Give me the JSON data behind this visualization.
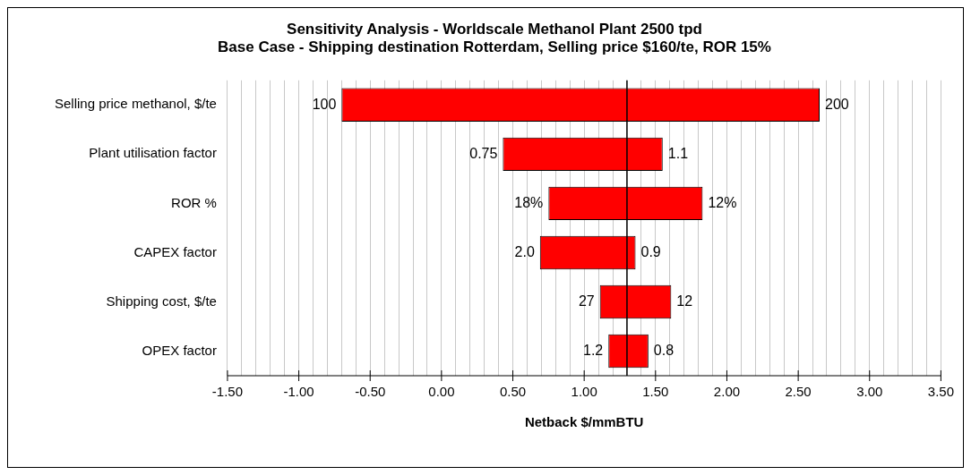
{
  "chart_data": {
    "type": "bar",
    "orientation": "horizontal",
    "title": "Sensitivity Analysis - Worldscale Methanol Plant 2500 tpd",
    "subtitle": "Base Case - Shipping destination Rotterdam, Selling price $160/te, ROR 15%",
    "xlabel": "Netback $/mmBTU",
    "categories": [
      "Selling price methanol, $/te",
      "Plant utilisation factor",
      "ROR %",
      "CAPEX factor",
      "Shipping cost, $/te",
      "OPEX factor"
    ],
    "base": [
      -0.7,
      0.43,
      0.75,
      0.69,
      1.11,
      1.17
    ],
    "values": [
      3.35,
      1.12,
      1.08,
      0.67,
      0.5,
      0.28
    ],
    "color": "#ff0000",
    "xlim": [
      -1.5,
      3.5
    ],
    "xticks": [
      {
        "value": -1.5,
        "label": "-1.50"
      },
      {
        "value": -1.4,
        "label": null
      },
      {
        "value": -1.3,
        "label": null
      },
      {
        "value": -1.2,
        "label": null
      },
      {
        "value": -1.1,
        "label": null
      },
      {
        "value": -1.0,
        "label": "-1.00"
      },
      {
        "value": -0.9,
        "label": null
      },
      {
        "value": -0.8,
        "label": null
      },
      {
        "value": -0.7,
        "label": null
      },
      {
        "value": -0.6,
        "label": null
      },
      {
        "value": -0.5,
        "label": "-0.50"
      },
      {
        "value": -0.4,
        "label": null
      },
      {
        "value": -0.3,
        "label": null
      },
      {
        "value": -0.2,
        "label": null
      },
      {
        "value": -0.1,
        "label": null
      },
      {
        "value": 0,
        "label": "0.00"
      },
      {
        "value": 0.1,
        "label": null
      },
      {
        "value": 0.2,
        "label": null
      },
      {
        "value": 0.3,
        "label": null
      },
      {
        "value": 0.4,
        "label": null
      },
      {
        "value": 0.5,
        "label": "0.50"
      },
      {
        "value": 0.6,
        "label": null
      },
      {
        "value": 0.7,
        "label": null
      },
      {
        "value": 0.8,
        "label": null
      },
      {
        "value": 0.9,
        "label": null
      },
      {
        "value": 1.0,
        "label": "1.00"
      },
      {
        "value": 1.1,
        "label": null
      },
      {
        "value": 1.2,
        "label": null
      },
      {
        "value": 1.3,
        "label": null
      },
      {
        "value": 1.4,
        "label": null
      },
      {
        "value": 1.5,
        "label": "1.50"
      },
      {
        "value": 1.6,
        "label": null
      },
      {
        "value": 1.7,
        "label": null
      },
      {
        "value": 1.8,
        "label": null
      },
      {
        "value": 1.9,
        "label": null
      },
      {
        "value": 2.0,
        "label": "2.00"
      },
      {
        "value": 2.1,
        "label": null
      },
      {
        "value": 2.2,
        "label": null
      },
      {
        "value": 2.3,
        "label": null
      },
      {
        "value": 2.4,
        "label": null
      },
      {
        "value": 2.5,
        "label": "2.50"
      },
      {
        "value": 2.6,
        "label": null
      },
      {
        "value": 2.7,
        "label": null
      },
      {
        "value": 2.8,
        "label": null
      },
      {
        "value": 2.9,
        "label": null
      },
      {
        "value": 3.0,
        "label": "3.00"
      },
      {
        "value": 3.1,
        "label": null
      },
      {
        "value": 3.2,
        "label": null
      },
      {
        "value": 3.3,
        "label": null
      },
      {
        "value": 3.4,
        "label": null
      },
      {
        "value": 3.5,
        "label": "3.50"
      }
    ],
    "grid": "x",
    "legend": false,
    "ref_lines": [
      {
        "axis": "x",
        "value": 1.3,
        "color": "#000000"
      }
    ],
    "annotations": [
      {
        "text": "100",
        "x": -0.7,
        "y": "Selling price methanol, $/te"
      },
      {
        "text": "200",
        "x": 2.65,
        "y": "Selling price methanol, $/te"
      },
      {
        "text": "0.75",
        "x": 0.43,
        "y": "Plant utilisation factor"
      },
      {
        "text": "1.1",
        "x": 1.55,
        "y": "Plant utilisation factor"
      },
      {
        "text": "18%",
        "x": 0.75,
        "y": "ROR %"
      },
      {
        "text": "12%",
        "x": 1.83,
        "y": "ROR %"
      },
      {
        "text": "2.0",
        "x": 0.69,
        "y": "CAPEX factor"
      },
      {
        "text": "0.9",
        "x": 1.36,
        "y": "CAPEX factor"
      },
      {
        "text": "27",
        "x": 1.11,
        "y": "Shipping cost, $/te"
      },
      {
        "text": "12",
        "x": 1.61,
        "y": "Shipping cost, $/te"
      },
      {
        "text": "1.2",
        "x": 1.17,
        "y": "OPEX factor"
      },
      {
        "text": "0.8",
        "x": 1.45,
        "y": "OPEX factor"
      }
    ]
  }
}
